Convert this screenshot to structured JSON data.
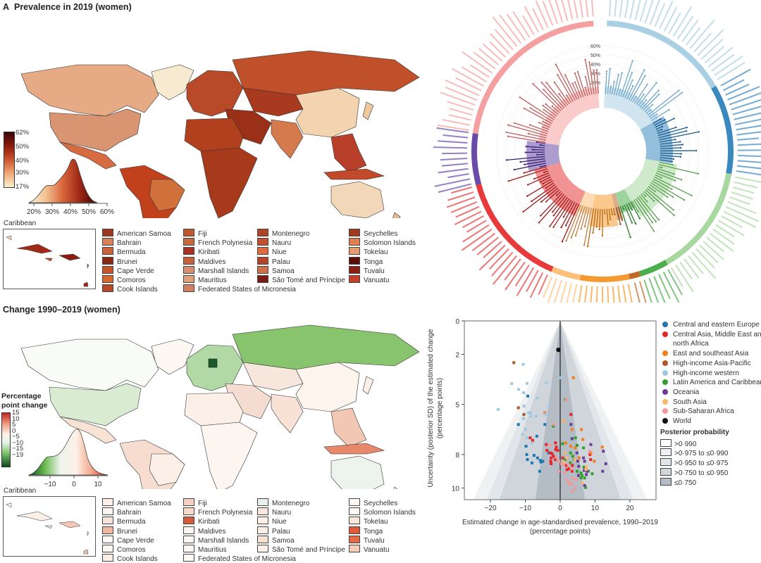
{
  "panel_a": {
    "letter": "A",
    "title": "Prevalence in 2019 (women)",
    "colorbar_ticks": [
      "62%",
      "50%",
      "40%",
      "30%",
      "17%"
    ],
    "density_ticks": [
      "20%",
      "30%",
      "40%",
      "50%",
      "60%"
    ],
    "inset_label": "Caribbean",
    "legend": [
      {
        "label": "American Samoa",
        "color": "#9c3a1e"
      },
      {
        "label": "Bahrain",
        "color": "#d9825a"
      },
      {
        "label": "Bermuda",
        "color": "#c9643c"
      },
      {
        "label": "Brunei",
        "color": "#8a2a14"
      },
      {
        "label": "Cape Verde",
        "color": "#c4552a"
      },
      {
        "label": "Comoros",
        "color": "#d46a30"
      },
      {
        "label": "Cook Islands",
        "color": "#b8482a"
      },
      {
        "label": "Fiji",
        "color": "#c0582e"
      },
      {
        "label": "French Polynesia",
        "color": "#c86a40"
      },
      {
        "label": "Kiribati",
        "color": "#a83020"
      },
      {
        "label": "Maldives",
        "color": "#c8603a"
      },
      {
        "label": "Marshall Islands",
        "color": "#d69070"
      },
      {
        "label": "Mauritius",
        "color": "#e0a07a"
      },
      {
        "label": "Federated States of Micronesia",
        "color": "#d08060"
      },
      {
        "label": "Montenegro",
        "color": "#b04424"
      },
      {
        "label": "Nauru",
        "color": "#c05030"
      },
      {
        "label": "Niue",
        "color": "#e06a40"
      },
      {
        "label": "Palau",
        "color": "#b34428"
      },
      {
        "label": "Samoa",
        "color": "#d07048"
      },
      {
        "label": "São Tomé and Príncipe",
        "color": "#7a1a10"
      },
      {
        "label": "Seychelles",
        "color": "#a23a22"
      },
      {
        "label": "Solomon Islands",
        "color": "#e08050"
      },
      {
        "label": "Tokelau",
        "color": "#e89a70"
      },
      {
        "label": "Tonga",
        "color": "#5a1008"
      },
      {
        "label": "Tuvalu",
        "color": "#8a2010"
      },
      {
        "label": "Vanuatu",
        "color": "#c4402a"
      }
    ],
    "radial_ticks": [
      "20%",
      "30%",
      "40%",
      "50%",
      "60%"
    ]
  },
  "panel_b": {
    "title": "Change 1990–2019 (women)",
    "colorbar_title": "Percentage point change",
    "colorbar_ticks": [
      "15",
      "10",
      "5",
      "0",
      "−5",
      "−10",
      "−15",
      "−19"
    ],
    "density_ticks": [
      "−10",
      "0",
      "10"
    ],
    "inset_label": "Caribbean",
    "legend": [
      {
        "label": "American Samoa",
        "color": "#fbefe8"
      },
      {
        "label": "Bahrain",
        "color": "#fbf3ee"
      },
      {
        "label": "Bermuda",
        "color": "#f8e4d8"
      },
      {
        "label": "Brunei",
        "color": "#f0b8a0"
      },
      {
        "label": "Cape Verde",
        "color": "#fdf8f4"
      },
      {
        "label": "Comoros",
        "color": "#fdf6f0"
      },
      {
        "label": "Cook Islands",
        "color": "#fbefe6"
      },
      {
        "label": "Fiji",
        "color": "#f6d0c0"
      },
      {
        "label": "French Polynesia",
        "color": "#f8d8c8"
      },
      {
        "label": "Kiribati",
        "color": "#d65a3a"
      },
      {
        "label": "Maldives",
        "color": "#fdf6f0"
      },
      {
        "label": "Marshall Islands",
        "color": "#fdf8f4"
      },
      {
        "label": "Mauritius",
        "color": "#fdf8f4"
      },
      {
        "label": "Federated States of Micronesia",
        "color": "#fdf8f4"
      },
      {
        "label": "Montenegro",
        "color": "#e8f2ea"
      },
      {
        "label": "Nauru",
        "color": "#fae6dc"
      },
      {
        "label": "Niue",
        "color": "#fbefe6"
      },
      {
        "label": "Palau",
        "color": "#fbeee6"
      },
      {
        "label": "Samoa",
        "color": "#f8e0d2"
      },
      {
        "label": "São Tomé and Príncipe",
        "color": "#fbefe6"
      },
      {
        "label": "Seychelles",
        "color": "#fdf8f4"
      },
      {
        "label": "Solomon Islands",
        "color": "#fdf8f4"
      },
      {
        "label": "Tokelau",
        "color": "#fce6da"
      },
      {
        "label": "Tonga",
        "color": "#e05a3a"
      },
      {
        "label": "Tuvalu",
        "color": "#e66a48"
      },
      {
        "label": "Vanuatu",
        "color": "#f6cdb8"
      }
    ]
  },
  "chart_data": [
    {
      "type": "scatter",
      "title": "",
      "xlabel": "Estimated change in age-standardised prevalence, 1990–2019",
      "xlabel_unit": "(percentage points)",
      "ylabel": "Uncertainty (posterior SD) of the estimated change",
      "ylabel_unit": "(percentage points)",
      "xlim": [
        -27.5,
        27.5
      ],
      "ylim": [
        0,
        10.7
      ],
      "y_inverted": true,
      "x_ticks": [
        "−20",
        "−10",
        "0",
        "10",
        "20"
      ],
      "x_tick_values": [
        -20,
        -10,
        0,
        10,
        20
      ],
      "y_ticks": [
        "0",
        "2",
        "5",
        "8",
        "10"
      ],
      "y_tick_values": [
        0,
        2,
        5,
        8,
        10
      ],
      "legend_placement": "right",
      "posterior_probability": {
        "title": "Posterior probability",
        "bands": [
          {
            "label": ">0·990",
            "color": "#ffffff",
            "half_width_at_bottom": 27.5
          },
          {
            "label": ">0·975 to ≤0·990",
            "color": "#eff1f3",
            "half_width_at_bottom": 25
          },
          {
            "label": ">0·950 to ≤0·975",
            "color": "#e2e5e9",
            "half_width_at_bottom": 21
          },
          {
            "label": ">0·750 to ≤0·950",
            "color": "#d0d5db",
            "half_width_at_bottom": 17.4
          },
          {
            "label": "≤0·750",
            "color": "#b4bcc6",
            "half_width_at_bottom": 7.1
          }
        ]
      },
      "series": [
        {
          "name": "Central and eastern Europe",
          "color": "#1f77b4",
          "points": [
            [
              -9.3,
              4.5
            ],
            [
              -12,
              6.2
            ],
            [
              -4.4,
              6.2
            ],
            [
              -6.7,
              6.9
            ],
            [
              -9.8,
              7.5
            ],
            [
              -9.6,
              8.0
            ],
            [
              -9.4,
              8.3
            ],
            [
              -8.1,
              8.5
            ],
            [
              -7.5,
              8.05
            ],
            [
              -6.5,
              8.2
            ],
            [
              -5.7,
              8.35
            ],
            [
              -5.5,
              8.45
            ],
            [
              -5,
              8.4
            ],
            [
              -5.9,
              9.0
            ],
            [
              -3.3,
              7.9
            ]
          ]
        },
        {
          "name": "Central Asia, Middle East and north Africa",
          "color": "#e8262a",
          "points": [
            [
              3.1,
              5.6
            ],
            [
              -8.6,
              7.0
            ],
            [
              -7.9,
              7.15
            ],
            [
              -4,
              7.4
            ],
            [
              -3.8,
              7.75
            ],
            [
              -2.8,
              7.9
            ],
            [
              -2.3,
              7.95
            ],
            [
              -1.95,
              8.1
            ],
            [
              -2.6,
              8.2
            ],
            [
              -2.7,
              8.4
            ],
            [
              -2.6,
              8.55
            ],
            [
              -1.35,
              7.3
            ],
            [
              -1.1,
              7.55
            ],
            [
              -1.3,
              7.7
            ],
            [
              -0.7,
              7.75
            ],
            [
              -1.4,
              8.3
            ],
            [
              0.7,
              8.2
            ],
            [
              1.8,
              8.65
            ],
            [
              1.95,
              8.9
            ],
            [
              2.6,
              8.85
            ],
            [
              3.4,
              9.0
            ],
            [
              3.5,
              8.65
            ],
            [
              8.55,
              8.0
            ],
            [
              8.75,
              8.3
            ]
          ]
        },
        {
          "name": "East and southeast Asia",
          "color": "#f57f20",
          "points": [
            [
              3.8,
              3.4
            ],
            [
              1,
              6
            ],
            [
              3.4,
              6.5
            ],
            [
              6.1,
              6.5
            ],
            [
              6.5,
              7.1
            ],
            [
              1.6,
              7.3
            ],
            [
              3,
              7.5
            ],
            [
              4.3,
              7.6
            ],
            [
              12.1,
              7.55
            ],
            [
              8.8,
              7.9
            ],
            [
              9.8,
              8.4
            ],
            [
              5.45,
              8.2
            ],
            [
              -4.4,
              5.5
            ]
          ]
        },
        {
          "name": "High-income Asia-Pacific",
          "color": "#b05a2a",
          "points": [
            [
              -13.3,
              2.5
            ],
            [
              -12,
              5.2
            ],
            [
              -10.4,
              5.6
            ]
          ]
        },
        {
          "name": "High-income western",
          "color": "#9ecae1",
          "points": [
            [
              -10.6,
              2.6
            ],
            [
              -13.9,
              3.75
            ],
            [
              -9.5,
              3.74
            ],
            [
              -11.9,
              4.1
            ],
            [
              -10.5,
              4.3
            ],
            [
              -6.5,
              4.6
            ],
            [
              -4,
              3.7
            ],
            [
              -3.1,
              5.1
            ],
            [
              -17.8,
              5.3
            ],
            [
              -10.4,
              5.1
            ],
            [
              -9.1,
              5.5
            ],
            [
              -8.5,
              5.5
            ],
            [
              -6.9,
              5.7
            ],
            [
              -8.4,
              5.7
            ],
            [
              -10.5,
              5.85
            ],
            [
              -4.2,
              5.6
            ],
            [
              -10,
              6.5
            ],
            [
              -10.8,
              6.8
            ],
            [
              -9.5,
              7.0
            ],
            [
              -8.1,
              7.3
            ],
            [
              0.3,
              3.4
            ],
            [
              1.1,
              4.1
            ]
          ]
        },
        {
          "name": "Latin America and Caribbean",
          "color": "#33a02c",
          "points": [
            [
              1.5,
              4.7
            ],
            [
              -1.95,
              6.3
            ],
            [
              3.4,
              7.05
            ],
            [
              4.4,
              7.0
            ],
            [
              0.7,
              7.35
            ],
            [
              4.85,
              7.45
            ],
            [
              6.7,
              7.6
            ],
            [
              3,
              7.9
            ],
            [
              3.6,
              8.1
            ],
            [
              4,
              8.3
            ],
            [
              1.4,
              8.3
            ],
            [
              2.9,
              8.5
            ],
            [
              6.8,
              8.75
            ],
            [
              4.85,
              9.0
            ],
            [
              6,
              9.1
            ],
            [
              8.1,
              9.0
            ],
            [
              9.2,
              9.15
            ],
            [
              6.3,
              9.25
            ],
            [
              7,
              9.4
            ],
            [
              6,
              9.4
            ],
            [
              7.3,
              9.97
            ]
          ]
        },
        {
          "name": "Oceania",
          "color": "#6a3d9a",
          "points": [
            [
              3.1,
              6.2
            ],
            [
              3.4,
              7.05
            ],
            [
              8.8,
              7.4
            ],
            [
              12.4,
              7.8
            ],
            [
              4.8,
              7.9
            ],
            [
              6.7,
              8.2
            ],
            [
              7,
              8.4
            ],
            [
              13.1,
              8.55
            ],
            [
              5.05,
              8.4
            ],
            [
              5.3,
              8.7
            ],
            [
              6.9,
              8.95
            ],
            [
              12.2,
              9.0
            ],
            [
              7.7,
              9.0
            ],
            [
              5.25,
              9.25
            ],
            [
              7.5,
              9.2
            ],
            [
              7,
              9.85
            ]
          ]
        },
        {
          "name": "South Asia",
          "color": "#fdb46b",
          "points": [
            [
              0.95,
              6.0
            ],
            [
              1.35,
              7.9
            ],
            [
              1.95,
              8.2
            ],
            [
              4.2,
              8.3
            ],
            [
              1.2,
              8.45
            ],
            [
              7.5,
              8.75
            ],
            [
              7.4,
              8.9
            ],
            [
              6.4,
              9.7
            ]
          ]
        },
        {
          "name": "Sub-Saharan Africa",
          "color": "#f4989a",
          "points": [
            [
              -1.75,
              6.2
            ],
            [
              -2.9,
              7.45
            ],
            [
              -0.9,
              8.2
            ],
            [
              -0.4,
              8.4
            ],
            [
              0.4,
              8.55
            ],
            [
              0.95,
              8.65
            ],
            [
              1.3,
              9.1
            ],
            [
              -0.4,
              9.0
            ],
            [
              2.3,
              8.6
            ],
            [
              3.2,
              8.85
            ],
            [
              1.9,
              9.5
            ],
            [
              2.4,
              9.65
            ],
            [
              3.2,
              9.75
            ],
            [
              4.2,
              10.0
            ],
            [
              3.4,
              10.2
            ],
            [
              2.8,
              9.8
            ],
            [
              3.7,
              9.45
            ],
            [
              4.6,
              9.5
            ],
            [
              8.5,
              7.8
            ],
            [
              1.75,
              4.7
            ],
            [
              2.9,
              9.77
            ]
          ]
        },
        {
          "name": "World",
          "color": "#111111",
          "points": [
            [
              -0.5,
              1.73
            ]
          ]
        }
      ]
    }
  ]
}
